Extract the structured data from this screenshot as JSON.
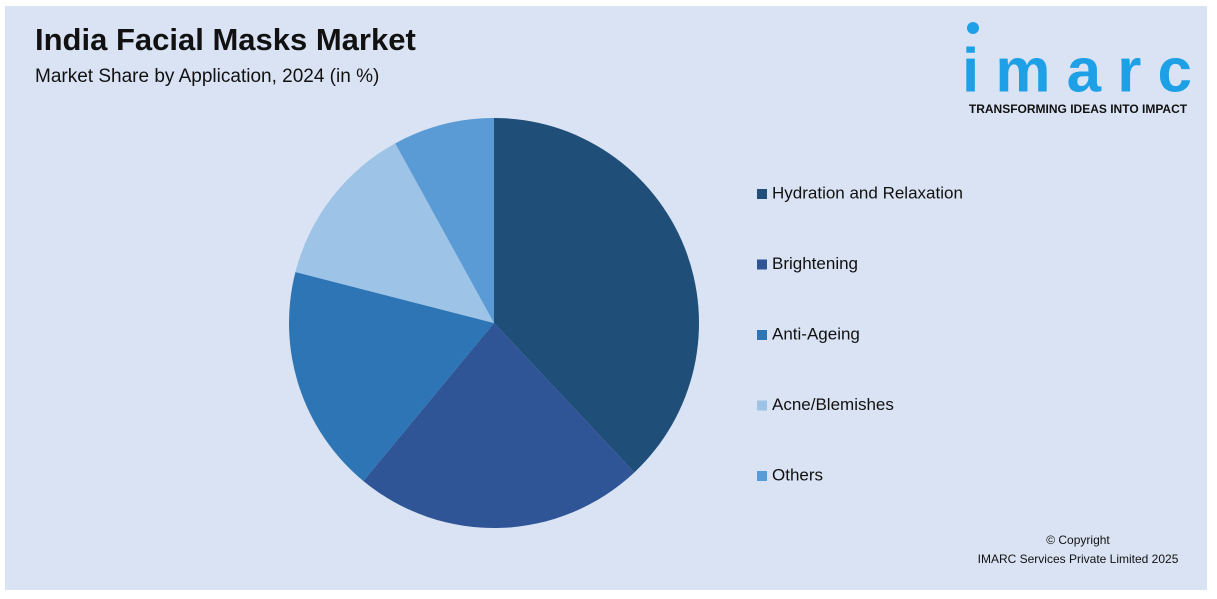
{
  "chart_data": {
    "type": "pie",
    "title": "India Facial Masks Market",
    "subtitle": "Market Share by Application, 2024 (in %)",
    "categories": [
      "Hydration and Relaxation",
      "Brightening",
      "Anti-Ageing",
      "Acne/Blemishes",
      "Others"
    ],
    "values": [
      38,
      23,
      18,
      13,
      8
    ],
    "colors": [
      "#1f4e79",
      "#2f5597",
      "#2e75b6",
      "#9dc3e6",
      "#5b9bd5"
    ],
    "legend": "right"
  },
  "logo": {
    "name": "imarc",
    "tagline": "TRANSFORMING IDEAS INTO IMPACT"
  },
  "copyright": {
    "line1": "© Copyright",
    "line2": "IMARC Services Private Limited 2025"
  }
}
